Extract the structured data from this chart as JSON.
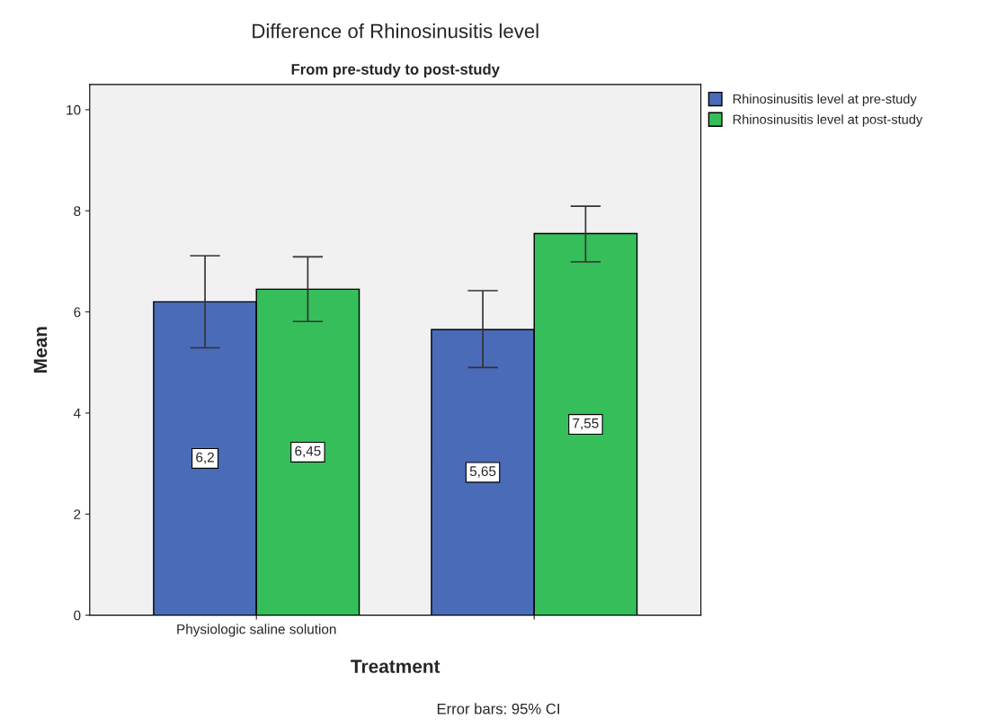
{
  "chart_data": {
    "type": "bar",
    "title": "Difference of Rhinosinusitis level",
    "subtitle": "From pre-study to post-study",
    "xlabel": "Treatment",
    "ylabel": "Mean",
    "categories": [
      "Physiologic saline solution",
      null
    ],
    "series": [
      {
        "name": "Rhinosinusitis level at pre-study",
        "color": "#4a6bb8",
        "values": [
          6.2,
          5.65
        ],
        "value_labels": [
          "6,2",
          "5,65"
        ],
        "errors": [
          [
            5.29,
            7.11
          ],
          [
            4.9,
            6.42
          ]
        ]
      },
      {
        "name": "Rhinosinusitis level at post-study",
        "color": "#35be5a",
        "values": [
          6.45,
          7.55
        ],
        "value_labels": [
          "6,45",
          "7,55"
        ],
        "errors": [
          [
            5.81,
            7.09
          ],
          [
            6.99,
            8.09
          ]
        ]
      }
    ],
    "ylim": [
      0,
      10.5
    ],
    "yticks": [
      0,
      2,
      4,
      6,
      8,
      10
    ],
    "grid": false,
    "legend": "top right",
    "annotations": [
      "Error bars: 95% CI"
    ]
  }
}
